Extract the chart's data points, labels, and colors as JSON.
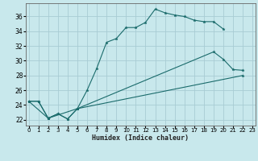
{
  "xlabel": "Humidex (Indice chaleur)",
  "bg_color": "#c8e8ec",
  "grid_color": "#a8ccd4",
  "line_color": "#1a6b6b",
  "line1_x": [
    0,
    1,
    2,
    3,
    4,
    5,
    6,
    7,
    8,
    9,
    10,
    11,
    12,
    13,
    14,
    15,
    16,
    17,
    18,
    19,
    20
  ],
  "line1_y": [
    24.5,
    24.5,
    22.2,
    22.8,
    22.1,
    23.5,
    26.0,
    29.0,
    32.5,
    33.0,
    34.5,
    34.5,
    35.2,
    37.0,
    36.5,
    36.2,
    36.0,
    35.5,
    35.3,
    35.3,
    34.3
  ],
  "line2_x": [
    0,
    1,
    2,
    3,
    4,
    5,
    19,
    20,
    21,
    22
  ],
  "line2_y": [
    24.5,
    24.5,
    22.2,
    22.8,
    22.1,
    23.5,
    31.2,
    30.2,
    28.8,
    28.7
  ],
  "line3_x": [
    0,
    2,
    5,
    22
  ],
  "line3_y": [
    24.5,
    22.2,
    23.5,
    28.0
  ],
  "xlim": [
    -0.3,
    23.3
  ],
  "ylim": [
    21.2,
    37.8
  ],
  "xticks": [
    0,
    1,
    2,
    3,
    4,
    5,
    6,
    7,
    8,
    9,
    10,
    11,
    12,
    13,
    14,
    15,
    16,
    17,
    18,
    19,
    20,
    21,
    22,
    23
  ],
  "yticks": [
    22,
    24,
    26,
    28,
    30,
    32,
    34,
    36
  ],
  "xlabel_fontsize": 6,
  "tick_fontsize": 5
}
